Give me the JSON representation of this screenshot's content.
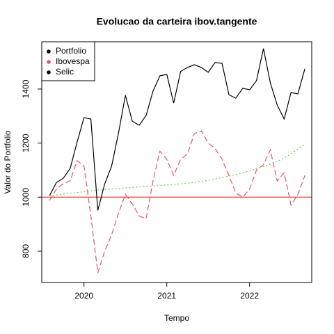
{
  "chart_data": {
    "type": "line",
    "title": "Evolucao da carteira ibov.tangente",
    "x_label": "Tempo",
    "y_label": "Valor do Portfolio",
    "x": [
      2019.583,
      2019.667,
      2019.75,
      2019.833,
      2019.917,
      2020,
      2020.083,
      2020.167,
      2020.25,
      2020.333,
      2020.417,
      2020.5,
      2020.583,
      2020.667,
      2020.75,
      2020.833,
      2020.917,
      2021,
      2021.083,
      2021.167,
      2021.25,
      2021.333,
      2021.417,
      2021.5,
      2021.583,
      2021.667,
      2021.75,
      2021.833,
      2021.917,
      2022,
      2022.083,
      2022.167,
      2022.25,
      2022.333,
      2022.417,
      2022.5,
      2022.583,
      2022.667
    ],
    "series": [
      {
        "name": "Portfolio",
        "color": "#000000",
        "legend_color": "#000000",
        "dash": "solid",
        "values": [
          1005,
          1054,
          1070,
          1106,
          1204,
          1294,
          1289,
          951,
          1049,
          1114,
          1237,
          1377,
          1281,
          1266,
          1302,
          1392,
          1449,
          1454,
          1348,
          1465,
          1480,
          1490,
          1480,
          1462,
          1498,
          1495,
          1379,
          1366,
          1403,
          1397,
          1431,
          1550,
          1423,
          1341,
          1289,
          1387,
          1382,
          1475
        ]
      },
      {
        "name": "Ibovespa",
        "color": "#DF536B",
        "legend_color": "#DF536B",
        "dash": "dashed",
        "values": [
          987,
          1030,
          1050,
          1060,
          1135,
          1115,
          930,
          720,
          800,
          860,
          940,
          1010,
          975,
          930,
          920,
          1060,
          1170,
          1140,
          1080,
          1140,
          1160,
          1235,
          1245,
          1200,
          1180,
          1140,
          1080,
          1015,
          1000,
          1030,
          1100,
          1120,
          1175,
          1060,
          1090,
          970,
          1010,
          1080
        ]
      },
      {
        "name": "Selic",
        "color": "#61D04F",
        "legend_color": "#000000",
        "dash": "dotted",
        "values": [
          1005,
          1008,
          1011,
          1014,
          1017,
          1020,
          1023,
          1026,
          1028,
          1030,
          1032,
          1034,
          1036,
          1038,
          1040,
          1041,
          1043,
          1045,
          1047,
          1049,
          1052,
          1055,
          1058,
          1062,
          1067,
          1072,
          1078,
          1084,
          1090,
          1097,
          1105,
          1113,
          1122,
          1132,
          1145,
          1160,
          1178,
          1195
        ]
      }
    ],
    "reference_line": {
      "value": 1000,
      "color": "#FF0000"
    },
    "xlim": [
      2019.49,
      2022.75
    ],
    "xticks": [
      2020,
      2021,
      2022
    ],
    "ylim": [
      684,
      1575
    ],
    "yticks": [
      800,
      1000,
      1200,
      1400
    ],
    "legend": "top-left"
  }
}
